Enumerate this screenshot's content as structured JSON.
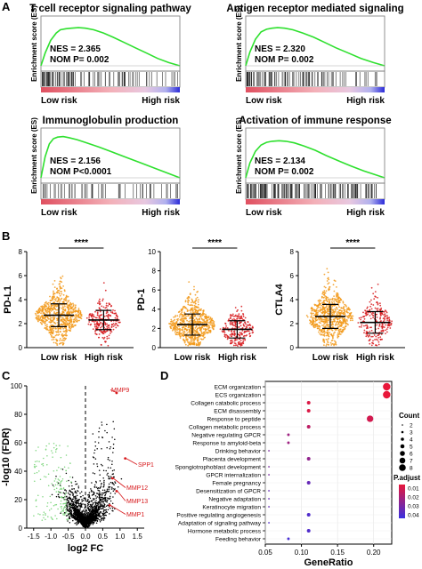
{
  "figure": {
    "panel_letters": [
      "A",
      "B",
      "C",
      "D"
    ]
  },
  "chart_data": [
    {
      "type": "line",
      "panel": "A",
      "title": "T cell receptor signaling pathway",
      "ylabel": "Enrichment score (ES)",
      "nes": "NES = 2.365",
      "nom_p": "NOM P= 0.002",
      "low_label": "Low risk",
      "high_label": "High risk",
      "line_color": "#2ee02e",
      "curve": [
        [
          0,
          0
        ],
        [
          0.03,
          0.12
        ],
        [
          0.07,
          0.24
        ],
        [
          0.11,
          0.31
        ],
        [
          0.14,
          0.34
        ],
        [
          0.18,
          0.35
        ],
        [
          0.22,
          0.355
        ],
        [
          0.27,
          0.36
        ],
        [
          0.32,
          0.355
        ],
        [
          0.38,
          0.34
        ],
        [
          0.45,
          0.31
        ],
        [
          0.52,
          0.27
        ],
        [
          0.6,
          0.22
        ],
        [
          0.68,
          0.17
        ],
        [
          0.76,
          0.12
        ],
        [
          0.84,
          0.07
        ],
        [
          0.92,
          0.03
        ],
        [
          1,
          0
        ]
      ],
      "hit_density": "front"
    },
    {
      "type": "line",
      "panel": "A",
      "title": "Antigen receptor mediated signaling",
      "ylabel": "Enrichment score (ES)",
      "nes": "NES = 2.320",
      "nom_p": "NOM P= 0.002",
      "low_label": "Low risk",
      "high_label": "High risk",
      "line_color": "#2ee02e",
      "curve": [
        [
          0,
          0
        ],
        [
          0.03,
          0.13
        ],
        [
          0.07,
          0.25
        ],
        [
          0.11,
          0.32
        ],
        [
          0.15,
          0.345
        ],
        [
          0.19,
          0.355
        ],
        [
          0.23,
          0.36
        ],
        [
          0.28,
          0.355
        ],
        [
          0.34,
          0.34
        ],
        [
          0.41,
          0.31
        ],
        [
          0.49,
          0.27
        ],
        [
          0.57,
          0.22
        ],
        [
          0.65,
          0.17
        ],
        [
          0.74,
          0.12
        ],
        [
          0.83,
          0.07
        ],
        [
          0.92,
          0.03
        ],
        [
          1,
          0
        ]
      ],
      "hit_density": "front"
    },
    {
      "type": "line",
      "panel": "A",
      "title": "Immunoglobulin production",
      "ylabel": "Enrichment score (ES)",
      "nes": "NES = 2.156",
      "nom_p": "NOM P<0.0001",
      "low_label": "Low risk",
      "high_label": "High risk",
      "line_color": "#2ee02e",
      "curve": [
        [
          0,
          0
        ],
        [
          0.03,
          0.2
        ],
        [
          0.06,
          0.32
        ],
        [
          0.09,
          0.37
        ],
        [
          0.12,
          0.385
        ],
        [
          0.16,
          0.39
        ],
        [
          0.2,
          0.38
        ],
        [
          0.26,
          0.36
        ],
        [
          0.33,
          0.33
        ],
        [
          0.42,
          0.29
        ],
        [
          0.52,
          0.24
        ],
        [
          0.62,
          0.19
        ],
        [
          0.72,
          0.14
        ],
        [
          0.82,
          0.09
        ],
        [
          0.91,
          0.045
        ],
        [
          1,
          0
        ]
      ],
      "hit_density": "sparse"
    },
    {
      "type": "line",
      "panel": "A",
      "title": "Activation of immune response",
      "ylabel": "Enrichment score (ES)",
      "nes": "NES = 2.134",
      "nom_p": "NOM P= 0.002",
      "low_label": "Low risk",
      "high_label": "High risk",
      "line_color": "#2ee02e",
      "curve": [
        [
          0,
          0
        ],
        [
          0.03,
          0.14
        ],
        [
          0.07,
          0.25
        ],
        [
          0.11,
          0.31
        ],
        [
          0.15,
          0.335
        ],
        [
          0.19,
          0.345
        ],
        [
          0.24,
          0.35
        ],
        [
          0.29,
          0.345
        ],
        [
          0.35,
          0.33
        ],
        [
          0.42,
          0.3
        ],
        [
          0.5,
          0.26
        ],
        [
          0.58,
          0.21
        ],
        [
          0.67,
          0.16
        ],
        [
          0.76,
          0.11
        ],
        [
          0.85,
          0.065
        ],
        [
          0.93,
          0.03
        ],
        [
          1,
          0
        ]
      ],
      "hit_density": "dense"
    },
    {
      "type": "scatter",
      "panel": "B",
      "ylabel": "PD-L1",
      "categories": [
        "Low risk",
        "High risk"
      ],
      "ylim": [
        0,
        8
      ],
      "yticks": [
        "0",
        "2",
        "4",
        "6",
        "8"
      ],
      "significance": "****",
      "colors": [
        "#f29a1c",
        "#d7191c"
      ],
      "mean": [
        2.7,
        2.3
      ],
      "sd": [
        0.95,
        0.8
      ],
      "count": [
        700,
        230
      ]
    },
    {
      "type": "scatter",
      "panel": "B",
      "ylabel": "PD-1",
      "categories": [
        "Low risk",
        "High risk"
      ],
      "ylim": [
        0,
        10
      ],
      "yticks": [
        "0",
        "2",
        "4",
        "6",
        "8",
        "10"
      ],
      "significance": "****",
      "colors": [
        "#f29a1c",
        "#d7191c"
      ],
      "mean": [
        2.4,
        1.9
      ],
      "sd": [
        1.1,
        0.9
      ],
      "count": [
        700,
        230
      ]
    },
    {
      "type": "scatter",
      "panel": "B",
      "ylabel": "CTLA4",
      "categories": [
        "Low risk",
        "High risk"
      ],
      "ylim": [
        0,
        8
      ],
      "yticks": [
        "0",
        "2",
        "4",
        "6",
        "8"
      ],
      "significance": "****",
      "colors": [
        "#f29a1c",
        "#d7191c"
      ],
      "mean": [
        2.6,
        2.1
      ],
      "sd": [
        1.0,
        0.9
      ],
      "count": [
        700,
        230
      ]
    },
    {
      "type": "scatter",
      "panel": "C",
      "xlabel": "log2 FC",
      "ylabel": "-log10 (FDR)",
      "xlim": [
        -1.7,
        1.7
      ],
      "ylim": [
        0,
        100
      ],
      "xticks": [
        "-1.5",
        "-1.0",
        "-0.5",
        "0.0",
        "0.5",
        "1.0",
        "1.5"
      ],
      "yticks": [
        "0",
        "20",
        "40",
        "60",
        "80",
        "100"
      ],
      "labeled_genes": [
        {
          "label": "MMP9",
          "x": 0.9,
          "y": 95
        },
        {
          "label": "SPP1",
          "x": 1.15,
          "y": 49
        },
        {
          "label": "MMP12",
          "x": 0.78,
          "y": 35
        },
        {
          "label": "MMP13",
          "x": 0.9,
          "y": 26
        },
        {
          "label": "MMP1",
          "x": 0.7,
          "y": 16
        }
      ],
      "colors": {
        "down": "#7ed67e",
        "ns": "#000000",
        "up": "#d7191c"
      }
    },
    {
      "type": "scatter",
      "panel": "D",
      "xlabel": "GeneRatio",
      "xlim": [
        0.05,
        0.225
      ],
      "xticks": [
        0.05,
        0.1,
        0.15,
        0.2
      ],
      "xtick_labels": [
        "0.05",
        "0.10",
        "0.15",
        "0.20"
      ],
      "terms": [
        {
          "label": "ECM organization",
          "x": 0.218,
          "count": 8,
          "padj": 0.005
        },
        {
          "label": "ECS organization",
          "x": 0.218,
          "count": 8,
          "padj": 0.005
        },
        {
          "label": "Collagen catabolic process",
          "x": 0.11,
          "count": 4,
          "padj": 0.008
        },
        {
          "label": "ECM disassembly",
          "x": 0.11,
          "count": 4,
          "padj": 0.008
        },
        {
          "label": "Response to peptide",
          "x": 0.195,
          "count": 7,
          "padj": 0.01
        },
        {
          "label": "Collagen metabolic process",
          "x": 0.11,
          "count": 4,
          "padj": 0.015
        },
        {
          "label": "Negative regulating GPCR",
          "x": 0.082,
          "count": 3,
          "padj": 0.022
        },
        {
          "label": "Response to amyloid-beta",
          "x": 0.082,
          "count": 3,
          "padj": 0.022
        },
        {
          "label": "Drinking behavior",
          "x": 0.055,
          "count": 2,
          "padj": 0.03
        },
        {
          "label": "Placenta development",
          "x": 0.11,
          "count": 4,
          "padj": 0.025
        },
        {
          "label": "Spongiotrophoblast development",
          "x": 0.055,
          "count": 2,
          "padj": 0.03
        },
        {
          "label": "GPCR internalization",
          "x": 0.055,
          "count": 2,
          "padj": 0.03
        },
        {
          "label": "Female pregnancy",
          "x": 0.11,
          "count": 4,
          "padj": 0.035
        },
        {
          "label": "Desensitization of GPCR",
          "x": 0.055,
          "count": 2,
          "padj": 0.035
        },
        {
          "label": "Negative adaptation",
          "x": 0.055,
          "count": 2,
          "padj": 0.035
        },
        {
          "label": "Keratinocyte migration",
          "x": 0.055,
          "count": 2,
          "padj": 0.035
        },
        {
          "label": "Positive regulating angiogenesis",
          "x": 0.11,
          "count": 4,
          "padj": 0.04
        },
        {
          "label": "Adaptation of signaling pathway",
          "x": 0.055,
          "count": 2,
          "padj": 0.04
        },
        {
          "label": "Hormone metabolic process",
          "x": 0.11,
          "count": 4,
          "padj": 0.04
        },
        {
          "label": "Feeding behavior",
          "x": 0.082,
          "count": 3,
          "padj": 0.042
        }
      ],
      "legend": {
        "count_title": "Count",
        "count_values": [
          "2",
          "3",
          "4",
          "5",
          "6",
          "7",
          "8"
        ],
        "padj_title": "P.adjust",
        "padj_values": [
          "0.01",
          "0.02",
          "0.03",
          "0.04"
        ]
      },
      "colors": {
        "low": "#e8173a",
        "high": "#3a2fe0"
      }
    }
  ]
}
